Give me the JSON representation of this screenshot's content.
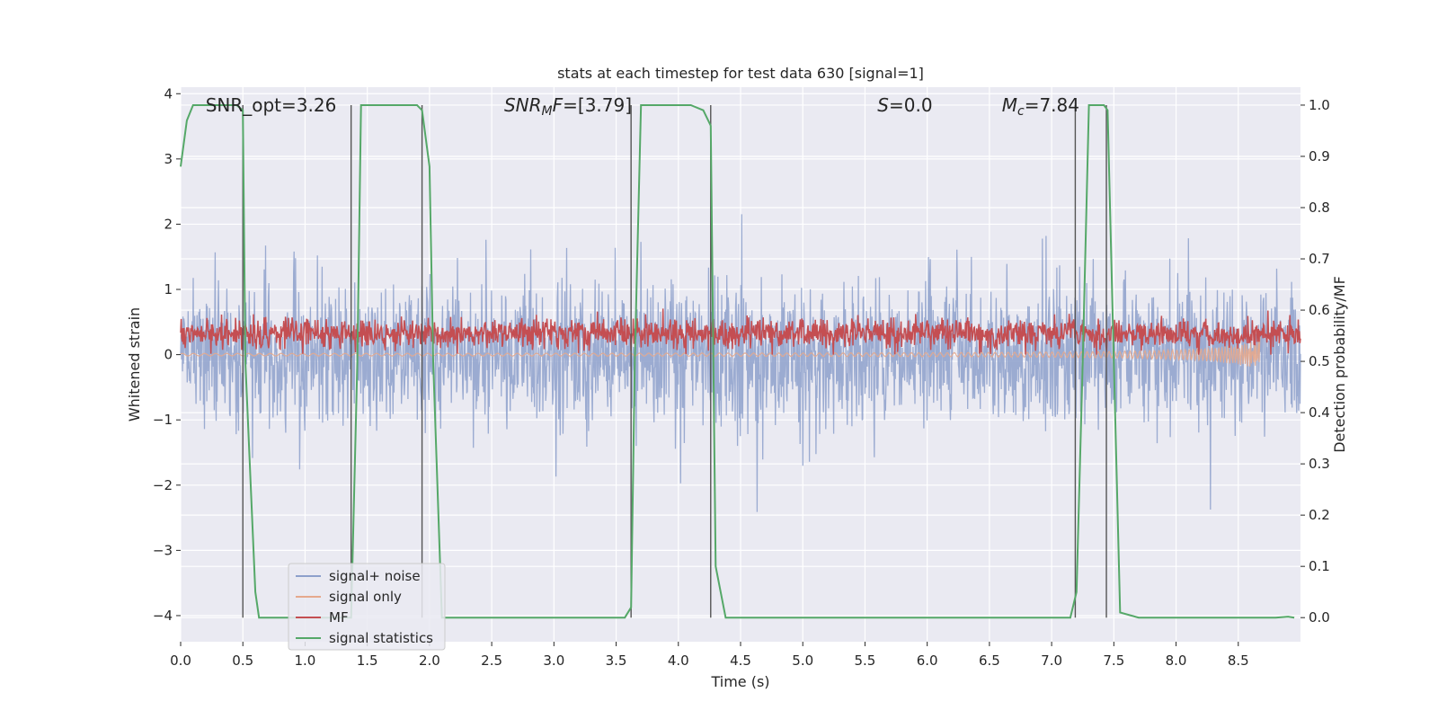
{
  "chart_data": {
    "type": "line",
    "title": "stats at each timestep for test data 630 [signal=1]",
    "xlabel": "Time (s)",
    "ylabel": "Whitened strain",
    "y2label": "Detection probability/MF",
    "xlim": [
      0,
      9.0
    ],
    "ylim": [
      -4.4,
      4.1
    ],
    "y2lim": [
      -0.047,
      1.035
    ],
    "xticks": [
      "0.0",
      "0.5",
      "1.0",
      "1.5",
      "2.0",
      "2.5",
      "3.0",
      "3.5",
      "4.0",
      "4.5",
      "5.0",
      "5.5",
      "6.0",
      "6.5",
      "7.0",
      "7.5",
      "8.0",
      "8.5"
    ],
    "yticks": [
      "−4",
      "−3",
      "−2",
      "−1",
      "0",
      "1",
      "2",
      "3",
      "4"
    ],
    "y2ticks": [
      "0.0",
      "0.1",
      "0.2",
      "0.3",
      "0.4",
      "0.5",
      "0.6",
      "0.7",
      "0.8",
      "0.9",
      "1.0"
    ],
    "grid": true,
    "legend_position": "lower-left",
    "annotations": [
      {
        "prefix": "SNR_opt=",
        "value": "3.26",
        "x": 0.2
      },
      {
        "math": "SNR",
        "sub": "M",
        "suffix": "F=",
        "value": "[3.79]",
        "x": 2.6
      },
      {
        "math": "S",
        "suffix": "=",
        "value": "0.0",
        "x": 5.6
      },
      {
        "math": "M",
        "sub": "c",
        "suffix": "=",
        "value": "7.84",
        "x": 6.6
      }
    ],
    "series": [
      {
        "name": "signal+ noise",
        "color": "#8da0cb",
        "axis": "left",
        "kind": "noise",
        "amplitude": 2.3
      },
      {
        "name": "signal only",
        "color": "#e5a98d",
        "axis": "left",
        "kind": "chirp",
        "end_time": 8.68
      },
      {
        "name": "MF",
        "color": "#c44e52",
        "axis": "left",
        "kind": "noise",
        "amplitude": 0.45
      },
      {
        "name": "signal statistics",
        "color": "#55a868",
        "axis": "right",
        "x": [
          0.0,
          0.05,
          0.1,
          0.2,
          0.3,
          0.4,
          0.45,
          0.5,
          0.52,
          0.6,
          0.63,
          0.7,
          1.0,
          1.3,
          1.37,
          1.42,
          1.45,
          1.5,
          1.7,
          1.9,
          1.94,
          2.0,
          2.03,
          2.1,
          2.5,
          3.0,
          3.5,
          3.57,
          3.62,
          3.65,
          3.7,
          3.9,
          4.1,
          4.2,
          4.26,
          4.3,
          4.38,
          4.5,
          5.0,
          5.5,
          6.0,
          6.5,
          7.0,
          7.15,
          7.2,
          7.25,
          7.3,
          7.35,
          7.42,
          7.45,
          7.5,
          7.55,
          7.7,
          8.0,
          8.5,
          8.8,
          8.9,
          8.95
        ],
        "y": [
          0.88,
          0.97,
          1.0,
          1.0,
          1.0,
          1.0,
          1.0,
          0.99,
          0.5,
          0.05,
          0.0,
          0.0,
          0.0,
          0.0,
          0.0,
          0.5,
          1.0,
          1.0,
          1.0,
          1.0,
          0.99,
          0.88,
          0.5,
          0.0,
          0.0,
          0.0,
          0.0,
          0.0,
          0.02,
          0.5,
          1.0,
          1.0,
          1.0,
          0.99,
          0.96,
          0.1,
          0.0,
          0.0,
          0.0,
          0.0,
          0.0,
          0.0,
          0.0,
          0.0,
          0.05,
          0.5,
          1.0,
          1.0,
          1.0,
          0.99,
          0.5,
          0.01,
          0.0,
          0.0,
          0.0,
          0.0,
          0.002,
          0.0
        ]
      }
    ],
    "vlines": [
      0.5,
      1.37,
      1.94,
      3.62,
      4.26,
      7.19,
      7.44
    ]
  }
}
